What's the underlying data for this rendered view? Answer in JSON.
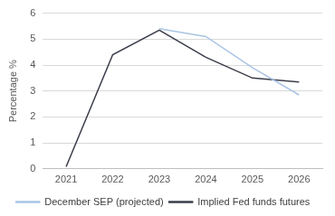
{
  "chart_data": {
    "type": "line",
    "y_label": "Percentage %",
    "categories": [
      "2021",
      "2022",
      "2023",
      "2024",
      "2025",
      "2026"
    ],
    "series": [
      {
        "name": "December SEP (projected)",
        "color": "#a9c4e4",
        "values": [
          null,
          null,
          5.4,
          5.1,
          3.9,
          2.85
        ]
      },
      {
        "name": "Implied Fed funds futures",
        "color": "#3a3d4a",
        "values": [
          0.08,
          4.4,
          5.35,
          4.3,
          3.5,
          3.35
        ]
      }
    ],
    "ylim": [
      0,
      6
    ],
    "yticks": [
      0,
      1,
      2,
      3,
      4,
      5,
      6
    ],
    "grid": true,
    "legend": "bottom"
  }
}
